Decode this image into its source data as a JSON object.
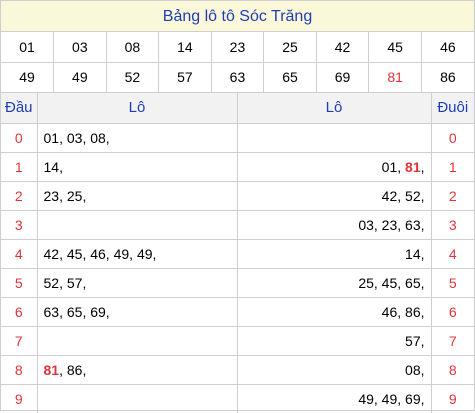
{
  "title": "Bảng lô tô Sóc Trăng",
  "numbers": [
    [
      "01",
      "03",
      "08",
      "14",
      "23",
      "25",
      "42",
      "45",
      "46"
    ],
    [
      "49",
      "49",
      "52",
      "57",
      "63",
      "65",
      "69",
      "81",
      "86"
    ]
  ],
  "highlight": "81",
  "headers": {
    "dau": "Đầu",
    "lo_left": "Lô",
    "lo_right": "Lô",
    "duoi": "Đuôi"
  },
  "rows": [
    {
      "dau": "0",
      "left": [
        "01",
        "03",
        "08"
      ],
      "right": [],
      "duoi": "0"
    },
    {
      "dau": "1",
      "left": [
        "14"
      ],
      "right": [
        "01",
        "81"
      ],
      "duoi": "1"
    },
    {
      "dau": "2",
      "left": [
        "23",
        "25"
      ],
      "right": [
        "42",
        "52"
      ],
      "duoi": "2"
    },
    {
      "dau": "3",
      "left": [],
      "right": [
        "03",
        "23",
        "63"
      ],
      "duoi": "3"
    },
    {
      "dau": "4",
      "left": [
        "42",
        "45",
        "46",
        "49",
        "49"
      ],
      "right": [
        "14"
      ],
      "duoi": "4"
    },
    {
      "dau": "5",
      "left": [
        "52",
        "57"
      ],
      "right": [
        "25",
        "45",
        "65"
      ],
      "duoi": "5"
    },
    {
      "dau": "6",
      "left": [
        "63",
        "65",
        "69"
      ],
      "right": [
        "46",
        "86"
      ],
      "duoi": "6"
    },
    {
      "dau": "7",
      "left": [],
      "right": [
        "57"
      ],
      "duoi": "7"
    },
    {
      "dau": "8",
      "left": [
        "81",
        "86"
      ],
      "right": [
        "08"
      ],
      "duoi": "8"
    },
    {
      "dau": "9",
      "left": [],
      "right": [
        "49",
        "49",
        "69"
      ],
      "duoi": "9"
    }
  ],
  "colors": {
    "title_bg": "#fbf7d9",
    "title_text": "#1f3db5",
    "highlight": "#e0343c",
    "header_bg": "#f2f2f2",
    "border": "#cfcfcf"
  }
}
